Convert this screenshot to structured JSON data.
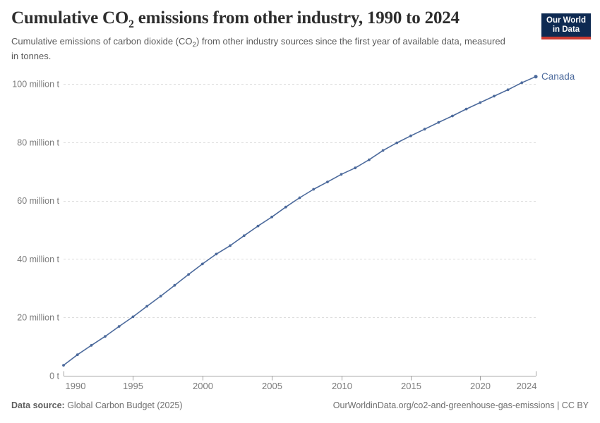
{
  "header": {
    "title_prefix": "Cumulative CO",
    "title_sub": "2",
    "title_suffix": " emissions from other industry, 1990 to 2024",
    "subtitle_prefix": "Cumulative emissions of carbon dioxide (CO",
    "subtitle_sub": "2",
    "subtitle_suffix": ") from other industry sources since the first year of available data, measured in tonnes."
  },
  "logo": {
    "line1": "Our World",
    "line2": "in Data",
    "bg_color": "#0e2a52",
    "accent_color": "#cb3a31"
  },
  "footer": {
    "source_label": "Data source:",
    "source_value": " Global Carbon Budget (2025)",
    "link": "OurWorldinData.org/co2-and-greenhouse-gas-emissions | CC BY"
  },
  "colors": {
    "line": "#4C6A9C",
    "series_label": "#4C6A9C",
    "grid": "#dcdcdc",
    "axis": "#a3a3a3",
    "tick_text": "#7c7c7c"
  },
  "chart_data": {
    "type": "line",
    "title": "Cumulative CO2 emissions from other industry, 1990 to 2024",
    "subtitle": "Cumulative emissions of carbon dioxide (CO2) from other industry sources since the first year of available data, measured in tonnes.",
    "xlabel": "",
    "ylabel": "",
    "units": "million tonnes",
    "grid": true,
    "legend_position": "end-of-line",
    "xlim": [
      1990,
      2024
    ],
    "ylim": [
      0,
      100
    ],
    "x": [
      1990,
      1991,
      1992,
      1993,
      1994,
      1995,
      1996,
      1997,
      1998,
      1999,
      2000,
      2001,
      2002,
      2003,
      2004,
      2005,
      2006,
      2007,
      2008,
      2009,
      2010,
      2011,
      2012,
      2013,
      2014,
      2015,
      2016,
      2017,
      2018,
      2019,
      2020,
      2021,
      2022,
      2023,
      2024
    ],
    "series": [
      {
        "name": "Canada",
        "values": [
          3.6,
          7.2,
          10.4,
          13.5,
          16.9,
          20.2,
          23.8,
          27.3,
          31.0,
          34.7,
          38.3,
          41.7,
          44.6,
          48.0,
          51.3,
          54.4,
          57.8,
          61.0,
          63.9,
          66.4,
          69.0,
          71.2,
          74.0,
          77.2,
          79.8,
          82.2,
          84.5,
          86.8,
          89.0,
          91.4,
          93.6,
          95.8,
          98.0,
          100.4,
          102.5
        ]
      }
    ],
    "yticks": [
      {
        "value": 0,
        "label": "0 t"
      },
      {
        "value": 20,
        "label": "20 million t"
      },
      {
        "value": 40,
        "label": "40 million t"
      },
      {
        "value": 60,
        "label": "60 million t"
      },
      {
        "value": 80,
        "label": "80 million t"
      },
      {
        "value": 100,
        "label": "100 million t"
      }
    ],
    "xticks": [
      1990,
      1995,
      2000,
      2005,
      2010,
      2015,
      2020,
      2024
    ]
  }
}
